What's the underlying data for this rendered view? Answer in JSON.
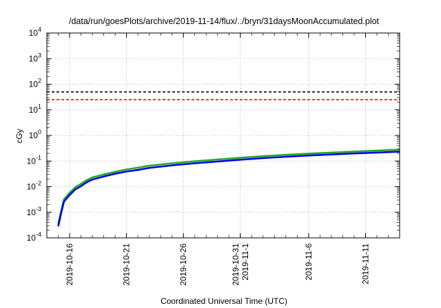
{
  "chart_data": {
    "type": "line",
    "title": "/data/run/goesPlots/archive/2019-11-14/flux/../bryn/31daysMoonAccumulated.plot",
    "xlabel": "Coordinated Universal Time (UTC)",
    "ylabel": "cGy",
    "yscale": "log",
    "ylim": [
      0.0001,
      10000
    ],
    "xlim": [
      "2019-10-14",
      "2019-11-14"
    ],
    "grid": true,
    "y_ticks": [
      {
        "base": "10",
        "exp": "-4"
      },
      {
        "base": "10",
        "exp": "-3"
      },
      {
        "base": "10",
        "exp": "-2"
      },
      {
        "base": "10",
        "exp": "-1"
      },
      {
        "base": "10",
        "exp": "0"
      },
      {
        "base": "10",
        "exp": "1"
      },
      {
        "base": "10",
        "exp": "2"
      },
      {
        "base": "10",
        "exp": "3"
      },
      {
        "base": "10",
        "exp": "4"
      }
    ],
    "x_ticks": [
      {
        "date": "2019-10-16",
        "label": [
          "2019-10-16"
        ]
      },
      {
        "date": "2019-10-21",
        "label": [
          "2019-10-21"
        ]
      },
      {
        "date": "2019-10-26",
        "label": [
          "2019-10-26"
        ]
      },
      {
        "date": "2019-10-31",
        "label": [
          "2019-10-31",
          "2019-11-1"
        ]
      },
      {
        "date": "2019-11-06",
        "label": [
          "2019-11-6"
        ]
      },
      {
        "date": "2019-11-11",
        "label": [
          "2019-11-11"
        ]
      }
    ],
    "reference_lines": [
      {
        "y": 50,
        "color": "#000000",
        "style": "dashed"
      },
      {
        "y": 25,
        "color": "#ff0000",
        "style": "dashed"
      }
    ],
    "series": [
      {
        "color": "#22aa22",
        "x": [
          "2019-10-15 00:00",
          "2019-10-15 06:00",
          "2019-10-15 12:00",
          "2019-10-16 00:00",
          "2019-10-16 12:00",
          "2019-10-17 00:00",
          "2019-10-17 12:00",
          "2019-10-18 00:00",
          "2019-10-19 00:00",
          "2019-10-20 00:00",
          "2019-10-21 00:00",
          "2019-10-22 00:00",
          "2019-10-23 00:00",
          "2019-10-25 00:00",
          "2019-10-27 00:00",
          "2019-10-29 00:00",
          "2019-10-31 00:00",
          "2019-11-02 00:00",
          "2019-11-04 00:00",
          "2019-11-06 00:00",
          "2019-11-08 00:00",
          "2019-11-10 00:00",
          "2019-11-12 00:00",
          "2019-11-14 00:00"
        ],
        "y": [
          0.00035,
          0.0011,
          0.0032,
          0.0058,
          0.0095,
          0.0128,
          0.018,
          0.023,
          0.03,
          0.038,
          0.047,
          0.055,
          0.066,
          0.082,
          0.098,
          0.115,
          0.135,
          0.155,
          0.175,
          0.195,
          0.215,
          0.235,
          0.255,
          0.28
        ]
      },
      {
        "color": "#0000ee",
        "x": [
          "2019-10-15 00:00",
          "2019-10-15 06:00",
          "2019-10-15 12:00",
          "2019-10-16 00:00",
          "2019-10-16 12:00",
          "2019-10-17 00:00",
          "2019-10-17 12:00",
          "2019-10-18 00:00",
          "2019-10-19 00:00",
          "2019-10-20 00:00",
          "2019-10-21 00:00",
          "2019-10-22 00:00",
          "2019-10-23 00:00",
          "2019-10-25 00:00",
          "2019-10-27 00:00",
          "2019-10-29 00:00",
          "2019-10-31 00:00",
          "2019-11-02 00:00",
          "2019-11-04 00:00",
          "2019-11-06 00:00",
          "2019-11-08 00:00",
          "2019-11-10 00:00",
          "2019-11-12 00:00",
          "2019-11-14 00:00"
        ],
        "y": [
          0.00028,
          0.0009,
          0.0026,
          0.0047,
          0.0078,
          0.0105,
          0.0148,
          0.019,
          0.025,
          0.032,
          0.039,
          0.045,
          0.054,
          0.068,
          0.082,
          0.096,
          0.113,
          0.13,
          0.147,
          0.164,
          0.181,
          0.198,
          0.214,
          0.232
        ]
      }
    ]
  }
}
